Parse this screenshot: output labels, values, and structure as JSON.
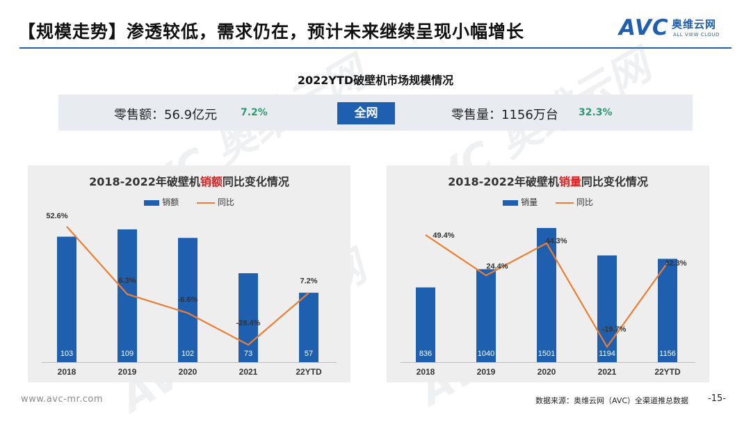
{
  "header": {
    "title": "【规模走势】渗透较低，需求仍在，预计未来继续呈现小幅增长",
    "logo_avc": "AVC",
    "logo_cn": "奥维云网",
    "logo_en": "ALL VIEW CLOUD"
  },
  "summary": {
    "subtitle": "2022YTD破壁机市场规模情况",
    "retail_amount": "零售额：56.9亿元",
    "retail_amount_pct": "7.2%",
    "channel": "全网",
    "retail_volume": "零售量：1156万台",
    "retail_volume_pct": "32.3%"
  },
  "watermark": {
    "avc": "AVC",
    "cn": "奥维云网",
    "en": "ALL VIEW CLOUD"
  },
  "footer": {
    "website": "www.avc-mr.com",
    "source": "数据来源：奥维云网（AVC）全渠道推总数据",
    "page": "-15-"
  },
  "chart_data": [
    {
      "type": "bar",
      "title_prefix": "2018-2022年破壁机",
      "title_highlight": "销额",
      "title_suffix": "同比变化情况",
      "legend": [
        "销额",
        "同比"
      ],
      "categories": [
        "2018",
        "2019",
        "2020",
        "2021",
        "22YTD"
      ],
      "series": [
        {
          "name": "销额",
          "type": "bar",
          "values": [
            103,
            109,
            102,
            73,
            57
          ],
          "labels": [
            "103",
            "109",
            "102",
            "73",
            "57"
          ]
        },
        {
          "name": "同比",
          "type": "line",
          "values": [
            52.6,
            6.3,
            -6.6,
            -28.4,
            7.2
          ],
          "labels": [
            "52.6%",
            "6.3%",
            "-6.6%",
            "-28.4%",
            "7.2%"
          ]
        }
      ],
      "colors": {
        "bar": "#1f5fb0",
        "line": "#ed7d31"
      }
    },
    {
      "type": "bar",
      "title_prefix": "2018-2022年破壁机",
      "title_highlight": "销量",
      "title_suffix": "同比变化情况",
      "legend": [
        "销量",
        "同比"
      ],
      "categories": [
        "2018",
        "2019",
        "2020",
        "2021",
        "22YTD"
      ],
      "series": [
        {
          "name": "销量",
          "type": "bar",
          "values": [
            836,
            1040,
            1501,
            1194,
            1156
          ],
          "labels": [
            "836",
            "1040",
            "1501",
            "1194",
            "1156"
          ]
        },
        {
          "name": "同比",
          "type": "line",
          "values": [
            49.4,
            24.4,
            44.3,
            -19.7,
            32.3
          ],
          "labels": [
            "49.4%",
            "24.4%",
            "44.3%",
            "-19.7%",
            "32.3%"
          ]
        }
      ],
      "colors": {
        "bar": "#1f5fb0",
        "line": "#ed7d31"
      }
    }
  ]
}
